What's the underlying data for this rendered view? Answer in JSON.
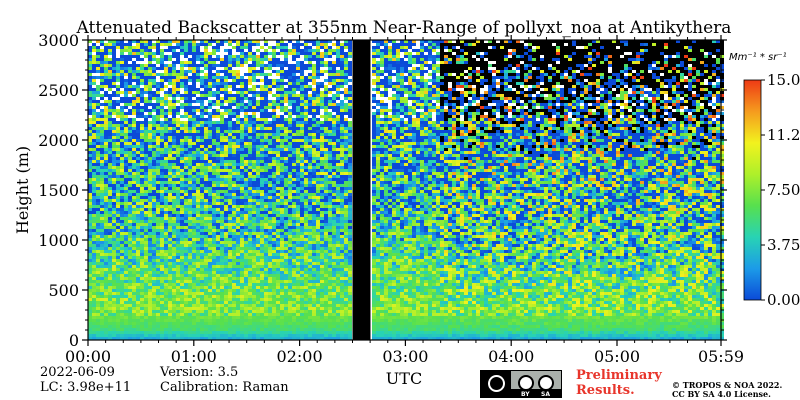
{
  "chart_data": {
    "type": "heatmap",
    "title": "Attenuated Backscatter at 355nm Near-Range of pollyxt_noa at Antikythera",
    "ylabel": "Height (m)",
    "xlabel": "UTC",
    "x_ticks": [
      "00:00",
      "01:00",
      "02:00",
      "03:00",
      "04:00",
      "05:00",
      "05:59"
    ],
    "y_ticks": [
      "0",
      "500",
      "1000",
      "1500",
      "2000",
      "2500",
      "3000"
    ],
    "xlim_hours": [
      0,
      5.983
    ],
    "ylim": [
      0,
      3000
    ],
    "no_data_gaps_hours": [
      [
        2.5,
        2.67
      ]
    ],
    "colorbar": {
      "unit": "Mm⁻¹ * sr⁻¹",
      "range": [
        0,
        15
      ],
      "ticks": [
        "0.00",
        "3.75",
        "7.50",
        "11.25",
        "15.00"
      ],
      "colors": [
        "#0b4ad8",
        "#1c9be8",
        "#28d3b4",
        "#57e04e",
        "#aef02a",
        "#f2f21e",
        "#f59b1e",
        "#ee3a15"
      ]
    },
    "profile": [
      {
        "height": 0,
        "value": 2.5
      },
      {
        "height": 100,
        "value": 5.5
      },
      {
        "height": 300,
        "value": 7.5
      },
      {
        "height": 600,
        "value": 6.5
      },
      {
        "height": 1000,
        "value": 5.0
      },
      {
        "height": 1500,
        "value": 4.0
      },
      {
        "height": 2000,
        "value": 3.0
      },
      {
        "height": 2400,
        "value": 2.5
      },
      {
        "height": 3000,
        "value": 0.8
      }
    ]
  },
  "footer": {
    "date": "2022-06-09",
    "version": "Version: 3.5",
    "lc": "LC: 3.98e+11",
    "calibration": "Calibration: Raman",
    "preliminary_line1": "Preliminary",
    "preliminary_line2": "Results.",
    "copyright_line1": "© TROPOS & NOA 2022.",
    "copyright_line2": "CC BY SA 4.0 License.",
    "cc_by": "BY",
    "cc_sa": "SA"
  }
}
